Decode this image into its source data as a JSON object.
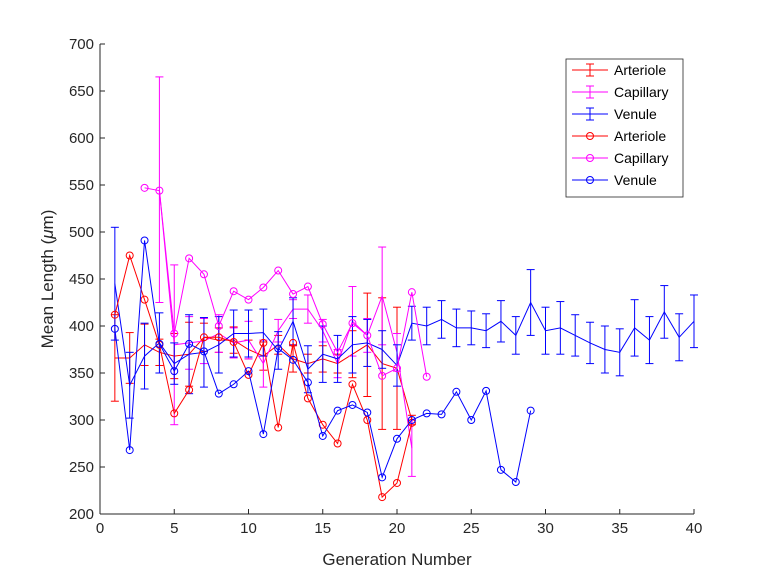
{
  "chart_data": {
    "type": "line",
    "title": "",
    "xlabel": "Generation Number",
    "ylabel": "Mean Length (",
    "ylabel_symbol": "μ",
    "ylabel_unit": "m)",
    "xlim": [
      0,
      40
    ],
    "ylim": [
      200,
      700
    ],
    "xticks": [
      0,
      5,
      10,
      15,
      20,
      25,
      30,
      35,
      40
    ],
    "yticks": [
      200,
      250,
      300,
      350,
      400,
      450,
      500,
      550,
      600,
      650,
      700
    ],
    "grid": false,
    "legend_position": "top-right",
    "colors": {
      "arteriole": "#ff0000",
      "capillary": "#ff00ff",
      "venule": "#0000ff",
      "axis": "#262626"
    },
    "errorbar_series": [
      {
        "name": "Arteriole",
        "color": "#ff0000",
        "x": [
          1,
          2,
          3,
          4,
          5,
          6,
          7,
          8,
          9,
          10,
          11,
          12,
          13,
          14,
          15,
          16,
          17,
          18,
          19,
          20,
          21
        ],
        "y": [
          366,
          366,
          380,
          372,
          368,
          370,
          388,
          385,
          385,
          375,
          368,
          380,
          365,
          360,
          365,
          360,
          370,
          380,
          360,
          355,
          300
        ],
        "err": [
          46,
          27,
          22,
          14,
          24,
          34,
          15,
          13,
          14,
          10,
          15,
          10,
          14,
          10,
          14,
          10,
          25,
          55,
          70,
          65,
          5
        ]
      },
      {
        "name": "Capillary",
        "color": "#ff00ff",
        "x": [
          4,
          5,
          6,
          7,
          8,
          9,
          10,
          11,
          12,
          13,
          14,
          15,
          16,
          17,
          18,
          19,
          20,
          21
        ],
        "y": [
          545,
          380,
          382,
          384,
          392,
          382,
          385,
          360,
          395,
          418,
          418,
          395,
          360,
          405,
          390,
          432,
          372,
          270
        ],
        "err": [
          120,
          85,
          28,
          24,
          20,
          16,
          20,
          25,
          12,
          10,
          15,
          12,
          15,
          37,
          18,
          52,
          20,
          30
        ]
      },
      {
        "name": "Venule",
        "color": "#0000ff",
        "x": [
          1,
          2,
          3,
          4,
          5,
          6,
          7,
          8,
          9,
          10,
          11,
          12,
          13,
          14,
          15,
          16,
          17,
          18,
          19,
          20,
          21,
          22,
          23,
          24,
          25,
          26,
          27,
          28,
          29,
          30,
          31,
          32,
          33,
          34,
          35,
          36,
          37,
          38,
          39,
          40
        ],
        "y": [
          445,
          337,
          368,
          382,
          360,
          370,
          372,
          380,
          392,
          392,
          393,
          374,
          405,
          354,
          370,
          365,
          380,
          382,
          375,
          358,
          403,
          400,
          407,
          398,
          398,
          395,
          405,
          390,
          425,
          395,
          398,
          390,
          382,
          375,
          372,
          398,
          385,
          415,
          388,
          405
        ],
        "err": [
          60,
          35,
          35,
          32,
          22,
          42,
          37,
          30,
          25,
          25,
          25,
          20,
          25,
          25,
          30,
          25,
          30,
          25,
          20,
          22,
          18,
          20,
          20,
          20,
          18,
          18,
          22,
          20,
          35,
          25,
          28,
          22,
          22,
          25,
          25,
          30,
          25,
          28,
          25,
          28
        ]
      }
    ],
    "marker_series": [
      {
        "name": "Arteriole",
        "color": "#ff0000",
        "x": [
          1,
          2,
          3,
          4,
          5,
          6,
          7,
          8,
          9,
          10,
          11,
          12,
          13,
          14,
          15,
          16,
          17,
          18,
          19,
          20,
          21
        ],
        "y": [
          412,
          475,
          428,
          380,
          307,
          332,
          388,
          388,
          383,
          348,
          382,
          292,
          382,
          323,
          295,
          275,
          338,
          300,
          218,
          233,
          297
        ]
      },
      {
        "name": "Capillary",
        "color": "#ff00ff",
        "x": [
          3,
          4,
          5,
          6,
          7,
          8,
          9,
          10,
          11,
          12,
          13,
          14,
          15,
          16,
          17,
          18,
          19,
          20,
          21,
          22
        ],
        "y": [
          547,
          544,
          392,
          472,
          455,
          400,
          437,
          428,
          441,
          459,
          434,
          442,
          402,
          372,
          403,
          390,
          347,
          355,
          436,
          346
        ]
      },
      {
        "name": "Venule",
        "color": "#0000ff",
        "x": [
          1,
          2,
          3,
          4,
          5,
          6,
          7,
          8,
          9,
          10,
          11,
          12,
          13,
          14,
          15,
          16,
          17,
          18,
          19,
          20,
          21,
          22,
          23,
          24,
          25,
          26,
          27,
          28,
          29
        ],
        "y": [
          397,
          268,
          491,
          381,
          352,
          381,
          373,
          328,
          338,
          352,
          285,
          376,
          364,
          340,
          283,
          310,
          316,
          308,
          239,
          280,
          300,
          307,
          306,
          330,
          300,
          331,
          247,
          234,
          310
        ]
      }
    ]
  }
}
